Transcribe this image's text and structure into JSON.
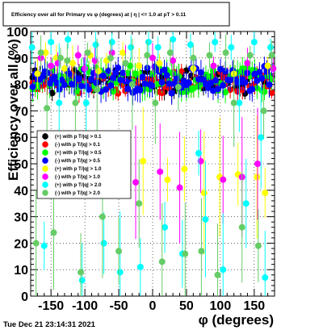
{
  "title": "Efficiency over all for Primary vs φ (degrees) at | η | <= 1.0 at pT > 0.11",
  "footer": "Tue Dec 21 23:14:31 2021",
  "chart_data": {
    "type": "scatter",
    "xlabel": "φ (degrees)",
    "ylabel": "Efficiency over all (%)",
    "xlim": [
      -180,
      180
    ],
    "ylim": [
      0,
      100
    ],
    "x_ticks": [
      -150,
      -100,
      -50,
      0,
      50,
      100,
      150
    ],
    "y_ticks": [
      0,
      10,
      20,
      30,
      40,
      50,
      60,
      70,
      80,
      90,
      100
    ],
    "grid": true,
    "legend_position": "left-middle",
    "series": [
      {
        "name": "(+) with p T/|q| > 0.1",
        "color": "#000000",
        "style": "dense",
        "base": 81,
        "amp": 3,
        "err": 2,
        "seed": 1
      },
      {
        "name": "(-) with p T/|q| > 0.1",
        "color": "#ff0000",
        "style": "dense",
        "base": 81,
        "amp": 3,
        "err": 2,
        "seed": 2
      },
      {
        "name": "(+) with p T/|q| > 0.5",
        "color": "#00ff00",
        "style": "dense",
        "base": 82,
        "amp": 4,
        "err": 3,
        "seed": 3
      },
      {
        "name": "(-) with p T/|q| > 0.5",
        "color": "#0000ff",
        "style": "dense",
        "base": 82,
        "amp": 4,
        "err": 3,
        "seed": 4
      },
      {
        "name": "(+) with p T/|q| > 1.0",
        "color": "#ffff00",
        "style": "sparse",
        "points": [
          [
            -158,
            92
          ],
          [
            -142,
            90
          ],
          [
            -118,
            88
          ],
          [
            -92,
            91
          ],
          [
            -68,
            89
          ],
          [
            -44,
            92
          ],
          [
            -14,
            51
          ],
          [
            22,
            44
          ],
          [
            47,
            48
          ],
          [
            76,
            39
          ],
          [
            99,
            45
          ],
          [
            126,
            46
          ],
          [
            154,
            45
          ],
          [
            166,
            39
          ],
          [
            -170,
            84
          ],
          [
            -130,
            86
          ],
          [
            -80,
            85
          ],
          [
            -20,
            87
          ],
          [
            10,
            88
          ],
          [
            60,
            86
          ],
          [
            120,
            84
          ],
          [
            170,
            87
          ]
        ]
      },
      {
        "name": "(-) with p T/|q| > 1.0",
        "color": "#ff00ff",
        "style": "sparse",
        "points": [
          [
            -165,
            90
          ],
          [
            -140,
            88
          ],
          [
            -110,
            91
          ],
          [
            -85,
            89
          ],
          [
            -60,
            92
          ],
          [
            -25,
            43
          ],
          [
            11,
            47
          ],
          [
            40,
            41
          ],
          [
            71,
            51
          ],
          [
            104,
            44
          ],
          [
            132,
            45
          ],
          [
            155,
            50
          ],
          [
            -150,
            87
          ],
          [
            -100,
            86
          ],
          [
            -40,
            88
          ],
          [
            0,
            90
          ],
          [
            30,
            89
          ],
          [
            90,
            87
          ],
          [
            140,
            88
          ],
          [
            178,
            86
          ]
        ]
      },
      {
        "name": "(+) with p T/|q| > 2.0",
        "color": "#00ffff",
        "style": "sparse",
        "points": [
          [
            -178,
            94
          ],
          [
            -160,
            19
          ],
          [
            -150,
            96
          ],
          [
            -138,
            73
          ],
          [
            -125,
            97
          ],
          [
            -104,
            6
          ],
          [
            -98,
            73
          ],
          [
            -84,
            95
          ],
          [
            -72,
            20
          ],
          [
            -60,
            96
          ],
          [
            -48,
            9
          ],
          [
            -32,
            94
          ],
          [
            -18,
            11
          ],
          [
            -6,
            96
          ],
          [
            8,
            94
          ],
          [
            18,
            26
          ],
          [
            30,
            97
          ],
          [
            44,
            16
          ],
          [
            56,
            95
          ],
          [
            68,
            54
          ],
          [
            78,
            29
          ],
          [
            92,
            96
          ],
          [
            104,
            10
          ],
          [
            116,
            94
          ],
          [
            128,
            73
          ],
          [
            138,
            35
          ],
          [
            150,
            96
          ],
          [
            160,
            60
          ],
          [
            166,
            7
          ],
          [
            174,
            94
          ]
        ]
      },
      {
        "name": "(-) with p T/|q| > 2.0",
        "color": "#66cc66",
        "style": "sparse",
        "points": [
          [
            -172,
            20
          ],
          [
            -165,
            92
          ],
          [
            -156,
            71
          ],
          [
            -146,
            24
          ],
          [
            -136,
            90
          ],
          [
            -126,
            89
          ],
          [
            -114,
            73
          ],
          [
            -106,
            9
          ],
          [
            -96,
            92
          ],
          [
            -82,
            78
          ],
          [
            -74,
            30
          ],
          [
            -62,
            90
          ],
          [
            -50,
            17
          ],
          [
            -40,
            88
          ],
          [
            -30,
            80
          ],
          [
            -20,
            35
          ],
          [
            -8,
            91
          ],
          [
            4,
            73
          ],
          [
            14,
            13
          ],
          [
            26,
            92
          ],
          [
            38,
            79
          ],
          [
            48,
            16
          ],
          [
            60,
            90
          ],
          [
            72,
            17
          ],
          [
            84,
            91
          ],
          [
            96,
            8
          ],
          [
            108,
            92
          ],
          [
            120,
            73
          ],
          [
            132,
            26
          ],
          [
            144,
            91
          ],
          [
            156,
            19
          ],
          [
            164,
            70
          ],
          [
            176,
            91
          ]
        ]
      }
    ]
  }
}
